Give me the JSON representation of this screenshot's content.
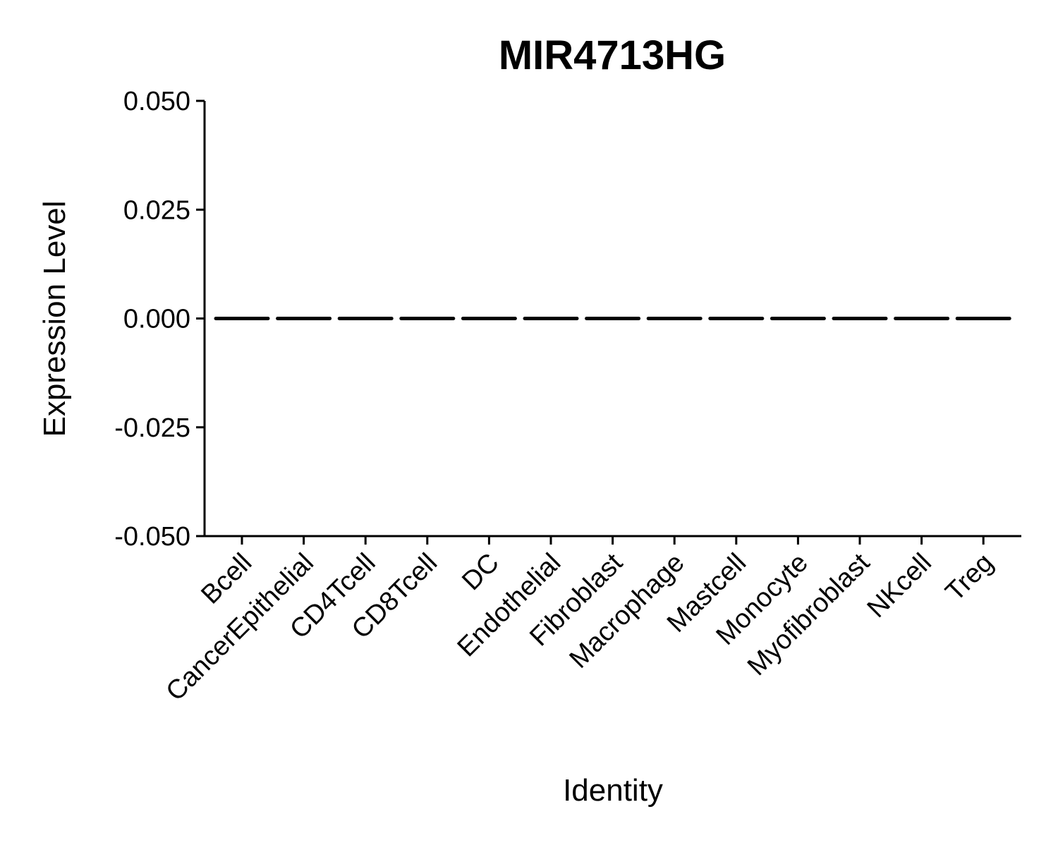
{
  "chart_data": {
    "type": "line",
    "title": "MIR4713HG",
    "xlabel": "Identity",
    "ylabel": "Expression Level",
    "categories": [
      "Bcell",
      "CancerEpithelial",
      "CD4Tcell",
      "CD8Tcell",
      "DC",
      "Endothelial",
      "Fibroblast",
      "Macrophage",
      "Mastcell",
      "Monocyte",
      "Myofibroblast",
      "NKcell",
      "Treg"
    ],
    "series": [
      {
        "values": [
          0,
          0,
          0,
          0,
          0,
          0,
          0,
          0,
          0,
          0,
          0,
          0,
          0
        ]
      }
    ],
    "ylim": [
      -0.05,
      0.05
    ],
    "yticks": [
      {
        "value": 0.05,
        "label": "0.050"
      },
      {
        "value": 0.025,
        "label": "0.025"
      },
      {
        "value": 0,
        "label": "0.000"
      },
      {
        "value": -0.025,
        "label": "-0.025"
      },
      {
        "value": -0.05,
        "label": "-0.050"
      }
    ],
    "grid": false,
    "legend": "none",
    "colors": {
      "line": "#000000",
      "axis": "#000000",
      "background": "#ffffff"
    }
  }
}
